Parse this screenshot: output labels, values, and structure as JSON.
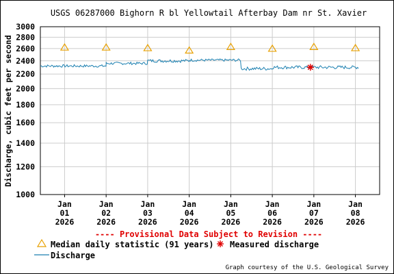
{
  "chart_data": {
    "type": "line",
    "title": "USGS 06287000 Bighorn R bl Yellowtail Afterbay Dam nr St. Xavier",
    "ylabel": "Discharge, cubic feet per second",
    "xlabel": "",
    "y_scale": "log",
    "ylim": [
      1000,
      3000
    ],
    "y_ticks": [
      "1000",
      "1200",
      "1400",
      "1600",
      "1800",
      "2000",
      "2200",
      "2400",
      "2600",
      "2800",
      "3000"
    ],
    "x_ticks": [
      {
        "month": "Jan",
        "day": "01",
        "year": "2026"
      },
      {
        "month": "Jan",
        "day": "02",
        "year": "2026"
      },
      {
        "month": "Jan",
        "day": "03",
        "year": "2026"
      },
      {
        "month": "Jan",
        "day": "04",
        "year": "2026"
      },
      {
        "month": "Jan",
        "day": "05",
        "year": "2026"
      },
      {
        "month": "Jan",
        "day": "06",
        "year": "2026"
      },
      {
        "month": "Jan",
        "day": "07",
        "year": "2026"
      },
      {
        "month": "Jan",
        "day": "08",
        "year": "2026"
      }
    ],
    "xlim": [
      "2025-12-31T10:00",
      "2026-01-08T14:00"
    ],
    "grid": true,
    "legend_position": "bottom",
    "series": [
      {
        "name": "Median daily statistic (91 years)",
        "marker": "triangle",
        "color": "#e8a000",
        "x": [
          "2026-01-01T00:00",
          "2026-01-02T00:00",
          "2026-01-03T00:00",
          "2026-01-04T00:00",
          "2026-01-05T00:00",
          "2026-01-06T00:00",
          "2026-01-07T00:00",
          "2026-01-08T00:00"
        ],
        "values": [
          2620,
          2620,
          2610,
          2570,
          2630,
          2600,
          2630,
          2610
        ]
      },
      {
        "name": "Measured discharge",
        "marker": "asterisk",
        "color": "#e00000",
        "x": [
          "2026-01-06T22:00"
        ],
        "values": [
          2300
        ]
      },
      {
        "name": "Discharge",
        "line": true,
        "color": "#1a7fb0",
        "segments": [
          {
            "x_start": "2025-12-31T10:00",
            "x_end": "2026-01-02T00:00",
            "level": 2320,
            "amp": 20
          },
          {
            "x_start": "2026-01-02T00:00",
            "x_end": "2026-01-03T00:00",
            "level": 2360,
            "amp": 20
          },
          {
            "x_start": "2026-01-03T00:00",
            "x_end": "2026-01-04T00:00",
            "level": 2400,
            "amp": 25
          },
          {
            "x_start": "2026-01-04T00:00",
            "x_end": "2026-01-05T06:00",
            "level": 2410,
            "amp": 20
          },
          {
            "x_start": "2026-01-05T06:00",
            "x_end": "2026-01-06T00:00",
            "level": 2280,
            "amp": 25
          },
          {
            "x_start": "2026-01-06T00:00",
            "x_end": "2026-01-08T02:00",
            "level": 2300,
            "amp": 25
          }
        ]
      }
    ]
  },
  "provisional_note": "---- Provisional Data Subject to Revision ----",
  "legend": {
    "median_label": "Median daily statistic (91 years)",
    "measured_label": "Measured discharge",
    "discharge_label": "Discharge"
  },
  "credit": "Graph courtesy of the U.S. Geological Survey",
  "colors": {
    "line": "#1a7fb0",
    "median": "#e8a000",
    "measured": "#e00000",
    "grid": "#cccccc",
    "provisional": "#e00000"
  }
}
